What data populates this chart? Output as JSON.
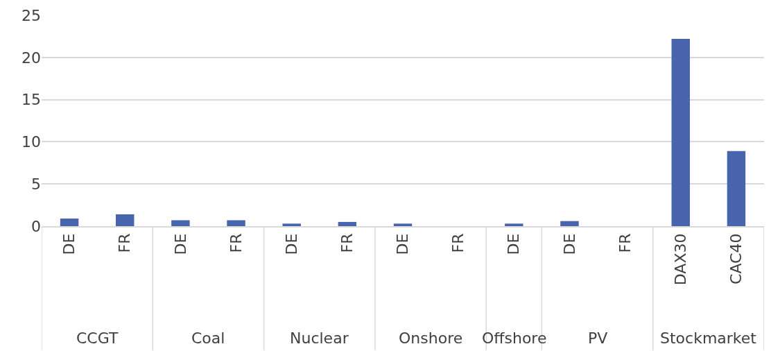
{
  "chart_data": {
    "type": "bar",
    "categories": [
      [
        "CCGT",
        "DE"
      ],
      [
        null,
        "FR"
      ],
      [
        "Coal",
        "DE"
      ],
      [
        null,
        "FR"
      ],
      [
        "Nuclear",
        "DE"
      ],
      [
        null,
        "FR"
      ],
      [
        "Onshore",
        "DE"
      ],
      [
        null,
        "FR"
      ],
      [
        "Offshore",
        "DE"
      ],
      [
        "PV",
        "DE"
      ],
      [
        null,
        "FR"
      ],
      [
        "Stockmarket",
        "DAX30"
      ],
      [
        null,
        "CAC40"
      ]
    ],
    "values": [
      0.9,
      1.4,
      0.7,
      0.7,
      0.3,
      0.5,
      0.3,
      0,
      0.3,
      0.6,
      0,
      22.2,
      8.9
    ],
    "color": "#4764ad",
    "ylim": [
      0,
      25
    ],
    "yticks": [
      0,
      5,
      10,
      15,
      20,
      25
    ],
    "grid": "y",
    "legend": false
  }
}
